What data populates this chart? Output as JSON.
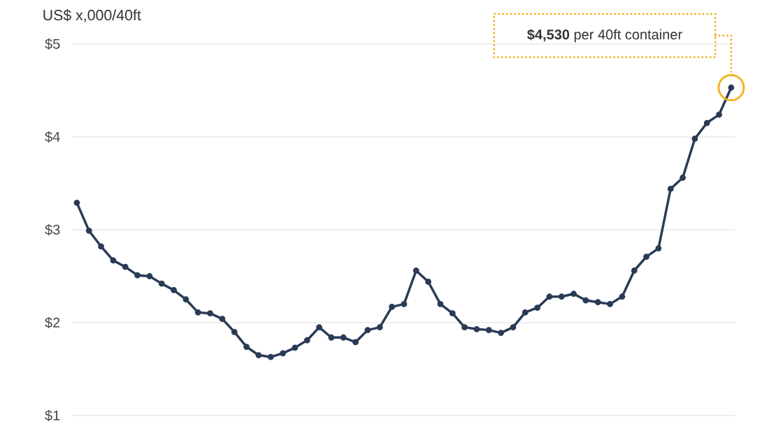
{
  "chart_data": {
    "type": "line",
    "ylabel": "US$ x,000/40ft",
    "categories": [
      null,
      null,
      null,
      null,
      null,
      null,
      null,
      null,
      null,
      null,
      null,
      null,
      null,
      null,
      null,
      null,
      null,
      null,
      null,
      null,
      null,
      null,
      null,
      null,
      null,
      null,
      null,
      null,
      null,
      null,
      null,
      null,
      null,
      null,
      null,
      null,
      null,
      null,
      null,
      null,
      null,
      null,
      null,
      null,
      null,
      null,
      null,
      null,
      null,
      null,
      null,
      null,
      null,
      null,
      null
    ],
    "series": [
      {
        "color": "#2a3b55",
        "values": [
          3.29,
          2.99,
          2.82,
          2.67,
          2.6,
          2.51,
          2.5,
          2.42,
          2.35,
          2.25,
          2.11,
          2.1,
          2.04,
          1.9,
          1.74,
          1.65,
          1.63,
          1.67,
          1.73,
          1.81,
          1.95,
          1.84,
          1.84,
          1.79,
          1.92,
          1.95,
          2.17,
          2.2,
          2.56,
          2.44,
          2.2,
          2.1,
          1.95,
          1.93,
          1.92,
          1.89,
          1.95,
          2.11,
          2.16,
          2.28,
          2.28,
          2.31,
          2.24,
          2.22,
          2.2,
          2.28,
          2.56,
          2.71,
          2.8,
          3.44,
          3.56,
          3.98,
          4.15,
          4.24,
          4.53
        ]
      }
    ],
    "ylim": [
      1,
      5
    ],
    "yticks": [
      {
        "value": 1,
        "label": "$1"
      },
      {
        "value": 2,
        "label": "$2"
      },
      {
        "value": 3,
        "label": "$3"
      },
      {
        "value": 4,
        "label": "$4"
      },
      {
        "value": 5,
        "label": "$5"
      }
    ],
    "grid": "y",
    "marker": "circle",
    "line_style": "solid",
    "annotations": [
      "**$4,530** per 40ft container"
    ]
  }
}
